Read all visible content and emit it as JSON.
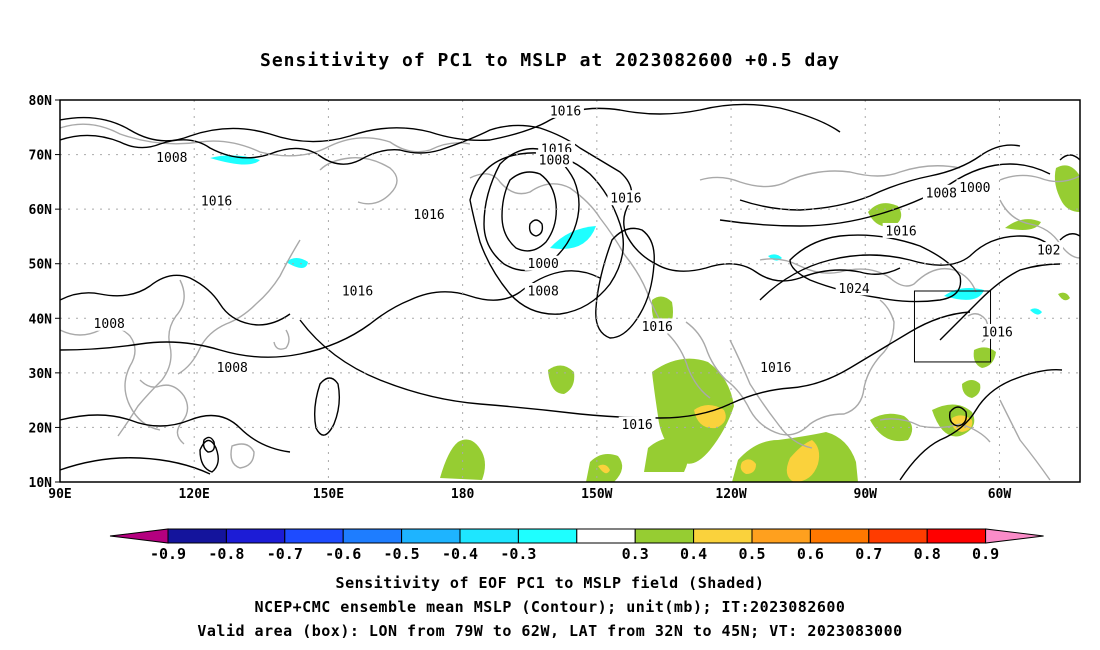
{
  "title": "Sensitivity of PC1 to MSLP at 2023082600 +0.5 day",
  "map": {
    "lat_labels": [
      "80N",
      "70N",
      "60N",
      "50N",
      "40N",
      "30N",
      "20N",
      "10N"
    ],
    "lon_labels": [
      "90E",
      "120E",
      "150E",
      "180",
      "150W",
      "120W",
      "90W",
      "60W"
    ],
    "contour_labels": [
      {
        "text": "1016",
        "lon": -157,
        "lat": 78
      },
      {
        "text": "1016",
        "lon": -159,
        "lat": 71
      },
      {
        "text": "1008",
        "lon": -159.5,
        "lat": 69
      },
      {
        "text": "1008",
        "lon": 115,
        "lat": 69.5
      },
      {
        "text": "1016",
        "lon": 125,
        "lat": 61.5
      },
      {
        "text": "1016",
        "lon": 172.5,
        "lat": 59
      },
      {
        "text": "1016",
        "lon": -143.5,
        "lat": 62
      },
      {
        "text": "1000",
        "lon": -162,
        "lat": 50
      },
      {
        "text": "1008",
        "lon": -162,
        "lat": 45
      },
      {
        "text": "1016",
        "lon": 156.5,
        "lat": 45
      },
      {
        "text": "1008",
        "lon": 101,
        "lat": 39
      },
      {
        "text": "1008",
        "lon": 128.5,
        "lat": 31
      },
      {
        "text": "1016",
        "lon": -136.5,
        "lat": 38.5
      },
      {
        "text": "1016",
        "lon": -110,
        "lat": 31
      },
      {
        "text": "1016",
        "lon": -141,
        "lat": 20.5
      },
      {
        "text": "1008",
        "lon": -73,
        "lat": 63
      },
      {
        "text": "1000",
        "lon": -65.5,
        "lat": 64
      },
      {
        "text": "1016",
        "lon": -82,
        "lat": 56
      },
      {
        "text": "1024",
        "lon": -92.5,
        "lat": 45.5
      },
      {
        "text": "1016",
        "lon": -60.5,
        "lat": 37.5
      },
      {
        "text": "102",
        "lon": -49,
        "lat": 52.5
      }
    ]
  },
  "chart_data": {
    "type": "heatmap",
    "title": "Sensitivity of PC1 to MSLP at 2023082600 +0.5 day",
    "projection": "cylindrical equidistant",
    "lon_range": [
      "90E",
      "42W"
    ],
    "lat_range": [
      "10N",
      "80N"
    ],
    "grid": true,
    "shaded_field": "Sensitivity of EOF PC1 to MSLP field",
    "contour_field": "NCEP+CMC ensemble mean MSLP (mb)",
    "contour_interval_mb": 8,
    "contour_values_labeled": [
      1000,
      1008,
      1016,
      1024
    ],
    "valid_area_box": {
      "lon_min": -79,
      "lon_max": -62,
      "lat_min": 32,
      "lat_max": 45
    },
    "colorbar": {
      "ticks": [
        "-0.9",
        "-0.8",
        "-0.7",
        "-0.6",
        "-0.5",
        "-0.4",
        "-0.3",
        "0.3",
        "0.4",
        "0.5",
        "0.6",
        "0.7",
        "0.8",
        "0.9"
      ],
      "colors": [
        "#b4007f",
        "#14149c",
        "#1c1cd6",
        "#1e4bff",
        "#1e7dff",
        "#1eb4ff",
        "#1ee6ff",
        "#1effff",
        "#ffffff",
        "#96cd32",
        "#fad23c",
        "#ffa01e",
        "#ff7800",
        "#ff3c00",
        "#ff0000",
        "#fa8cc8"
      ]
    },
    "shaded_regions": [
      {
        "name": "green",
        "value_range": "0.3-0.4",
        "centers": [
          [
            -75,
            59
          ],
          [
            -60,
            62
          ],
          [
            -45,
            63
          ],
          [
            -44,
            57
          ],
          [
            -53,
            54
          ],
          [
            -139,
            41
          ],
          [
            -131,
            27
          ],
          [
            -115,
            25
          ],
          [
            -105,
            15
          ],
          [
            -150,
            13
          ],
          [
            -125,
            12
          ],
          [
            -82,
            22
          ],
          [
            -68,
            28
          ],
          [
            -63,
            23
          ],
          [
            165,
            14
          ]
        ]
      },
      {
        "name": "yellow",
        "value_range": "0.4-0.5",
        "centers": [
          [
            -126,
            22
          ],
          [
            -104,
            14
          ],
          [
            -150,
            13
          ],
          [
            -65,
            21
          ]
        ]
      },
      {
        "name": "cyan",
        "value_range": "-0.4 to -0.3",
        "centers": [
          [
            116,
            68
          ],
          [
            143,
            49
          ],
          [
            -157,
            53
          ],
          [
            -67,
            42
          ],
          [
            -73,
            43
          ],
          [
            -87,
            50
          ],
          [
            -49,
            40
          ]
        ]
      }
    ]
  },
  "colors": {
    "contour": "#000000",
    "coastline": "#a9a9a9",
    "grid": "#a9a9a9",
    "green": "#96cd32",
    "yellow": "#fad23c",
    "cyan": "#1effff"
  },
  "captions": [
    "Sensitivity of EOF PC1 to MSLP field (Shaded)",
    "NCEP+CMC ensemble mean MSLP (Contour); unit(mb); IT:2023082600",
    "Valid area (box): LON from 79W to 62W, LAT from 32N to 45N; VT: 2023083000"
  ]
}
